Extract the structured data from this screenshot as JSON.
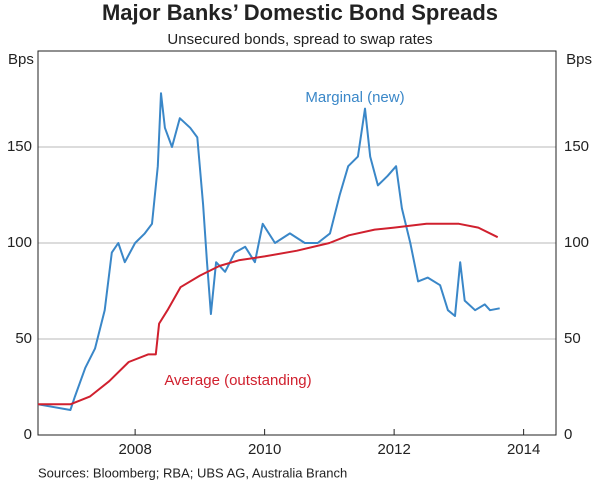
{
  "chart_data": {
    "type": "line",
    "title": "Major Banks’ Domestic Bond Spreads",
    "subtitle": "Unsecured bonds, spread to swap rates",
    "y_label": "Bps",
    "source": "Sources: Bloomberg; RBA; UBS AG, Australia Branch",
    "xlim": [
      2006.5,
      2014.5
    ],
    "xticks": [
      2008,
      2010,
      2012,
      2014
    ],
    "ylim": [
      0,
      200
    ],
    "yticks": [
      0,
      50,
      100,
      150
    ],
    "grid": true,
    "series": [
      {
        "name": "Marginal (new)",
        "color": "#3a87c8",
        "x": [
          2006.5,
          2007.0,
          2007.07,
          2007.23,
          2007.38,
          2007.53,
          2007.64,
          2007.74,
          2007.84,
          2008.0,
          2008.15,
          2008.26,
          2008.35,
          2008.4,
          2008.46,
          2008.57,
          2008.69,
          2008.85,
          2008.96,
          2009.05,
          2009.11,
          2009.17,
          2009.25,
          2009.39,
          2009.54,
          2009.7,
          2009.85,
          2009.97,
          2010.16,
          2010.39,
          2010.62,
          2010.82,
          2011.01,
          2011.16,
          2011.29,
          2011.44,
          2011.55,
          2011.63,
          2011.75,
          2011.9,
          2012.03,
          2012.12,
          2012.25,
          2012.37,
          2012.52,
          2012.71,
          2012.83,
          2012.94,
          2013.02,
          2013.09,
          2013.25,
          2013.4,
          2013.48,
          2013.63
        ],
        "values": [
          16,
          13,
          20,
          35,
          45,
          65,
          95,
          100,
          90,
          100,
          105,
          110,
          140,
          178,
          160,
          150,
          165,
          160,
          155,
          120,
          90,
          63,
          90,
          85,
          95,
          98,
          90,
          110,
          100,
          105,
          100,
          100,
          105,
          125,
          140,
          145,
          170,
          145,
          130,
          135,
          140,
          118,
          100,
          80,
          82,
          78,
          65,
          62,
          90,
          70,
          65,
          68,
          65,
          66
        ]
      },
      {
        "name": "Average (outstanding)",
        "color": "#d0202e",
        "x": [
          2006.5,
          2007.0,
          2007.3,
          2007.6,
          2007.9,
          2008.2,
          2008.32,
          2008.37,
          2008.5,
          2008.7,
          2009.0,
          2009.3,
          2009.6,
          2010.0,
          2010.5,
          2011.0,
          2011.3,
          2011.7,
          2012.0,
          2012.5,
          2013.0,
          2013.3,
          2013.6
        ],
        "values": [
          16,
          16,
          20,
          28,
          38,
          42,
          42,
          58,
          65,
          77,
          83,
          88,
          91,
          93,
          96,
          100,
          104,
          107,
          108,
          110,
          110,
          108,
          103
        ]
      }
    ]
  }
}
